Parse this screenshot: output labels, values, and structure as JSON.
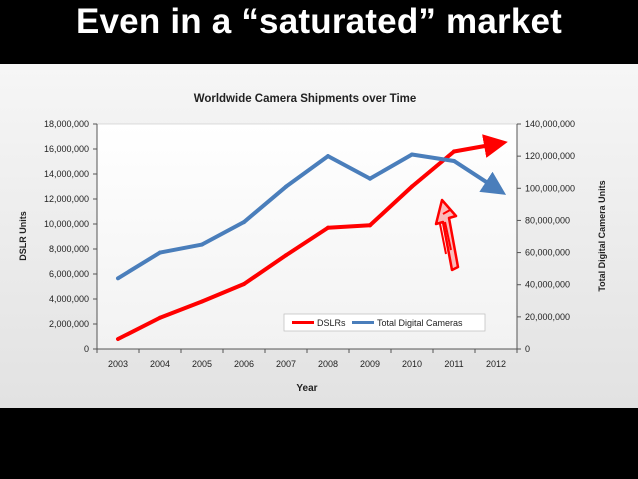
{
  "slide": {
    "title": "Even in a “saturated” market"
  },
  "chart_data": {
    "type": "line",
    "title": "Worldwide Camera Shipments over Time",
    "xlabel": "Year",
    "ylabel_left": "DSLR Units",
    "ylabel_right": "Total Digital Camera Units",
    "categories": [
      "2003",
      "2004",
      "2005",
      "2006",
      "2007",
      "2008",
      "2009",
      "2010",
      "2011",
      "2012"
    ],
    "y_left": {
      "range": [
        0,
        18000000
      ],
      "ticks": [
        "0",
        "2,000,000",
        "4,000,000",
        "6,000,000",
        "8,000,000",
        "10,000,000",
        "12,000,000",
        "14,000,000",
        "16,000,000",
        "18,000,000"
      ]
    },
    "y_right": {
      "range": [
        0,
        140000000
      ],
      "ticks": [
        "0",
        "20,000,000",
        "40,000,000",
        "60,000,000",
        "80,000,000",
        "100,000,000",
        "120,000,000",
        "140,000,000"
      ]
    },
    "series": [
      {
        "name": "DSLRs",
        "axis": "left",
        "color": "#ff0000",
        "x": [
          "2003",
          "2004",
          "2005",
          "2006",
          "2007",
          "2008",
          "2009",
          "2010",
          "2011",
          "2012"
        ],
        "values": [
          800000,
          2500000,
          3800000,
          5200000,
          7500000,
          9700000,
          9900000,
          13000000,
          15800000,
          16400000
        ]
      },
      {
        "name": "Total Digital Cameras",
        "axis": "right",
        "color": "#4a7ebb",
        "x": [
          "2003",
          "2004",
          "2005",
          "2006",
          "2007",
          "2008",
          "2009",
          "2010",
          "2011",
          "2012"
        ],
        "values": [
          44000000,
          60000000,
          65000000,
          79000000,
          101000000,
          120000000,
          106000000,
          121000000,
          117000000,
          100000000
        ]
      }
    ],
    "legend_position": "bottom-right inside plot",
    "grid": false,
    "arrow_color": "#ff0000"
  }
}
